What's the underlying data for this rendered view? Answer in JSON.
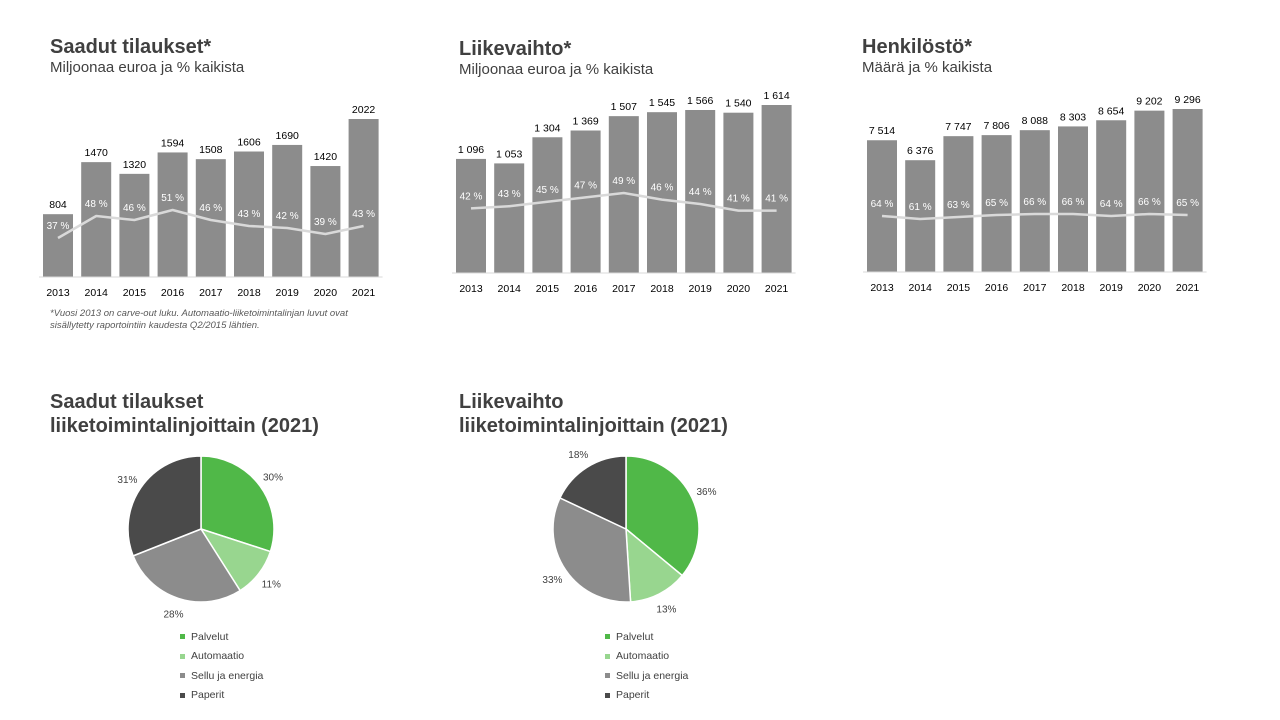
{
  "colors": {
    "bar": "#8c8c8c",
    "line": "#d9d9d9",
    "axis": "#d9d9d9",
    "pct": "#ffffff",
    "palvelut": "#50b848",
    "automaatio": "#98d68f",
    "sellu": "#8c8c8c",
    "paperit": "#4a4a4a"
  },
  "footnote": "*Vuosi 2013 on carve-out luku. Automaatio-liiketoimintalinjan luvut ovat sisällytetty raportointiin kaudesta Q2/2015 lähtien.",
  "chart_data": [
    {
      "type": "bar",
      "title": "Saadut tilaukset*",
      "subtitle": "Miljoonaa euroa ja % kaikista",
      "categories": [
        "2013",
        "2014",
        "2015",
        "2016",
        "2017",
        "2018",
        "2019",
        "2020",
        "2021"
      ],
      "values": [
        804,
        1470,
        1320,
        1594,
        1508,
        1606,
        1690,
        1420,
        2022
      ],
      "value_labels": [
        "804",
        "1470",
        "1320",
        "1594",
        "1508",
        "1606",
        "1690",
        "1420",
        "2022"
      ],
      "share": [
        37,
        48,
        46,
        51,
        46,
        43,
        42,
        39,
        43
      ],
      "share_labels": [
        "37 %",
        "48 %",
        "46 %",
        "51 %",
        "46 %",
        "43 %",
        "42 %",
        "39 %",
        "43 %"
      ]
    },
    {
      "type": "bar",
      "title": "Liikevaihto*",
      "subtitle": "Miljoonaa euroa ja % kaikista",
      "categories": [
        "2013",
        "2014",
        "2015",
        "2016",
        "2017",
        "2018",
        "2019",
        "2020",
        "2021"
      ],
      "values": [
        1096,
        1053,
        1304,
        1369,
        1507,
        1545,
        1566,
        1540,
        1614
      ],
      "value_labels": [
        "1 096",
        "1 053",
        "1 304",
        "1 369",
        "1 507",
        "1 545",
        "1 566",
        "1 540",
        "1 614"
      ],
      "share": [
        42,
        43,
        45,
        47,
        49,
        46,
        44,
        41,
        41
      ],
      "share_labels": [
        "42 %",
        "43 %",
        "45 %",
        "47 %",
        "49 %",
        "46 %",
        "44 %",
        "41 %",
        "41 %"
      ]
    },
    {
      "type": "bar",
      "title": "Henkilöstö*",
      "subtitle": "Määrä ja % kaikista",
      "categories": [
        "2013",
        "2014",
        "2015",
        "2016",
        "2017",
        "2018",
        "2019",
        "2020",
        "2021"
      ],
      "values": [
        7514,
        6376,
        7747,
        7806,
        8088,
        8303,
        8654,
        9202,
        9296
      ],
      "value_labels": [
        "7 514",
        "6 376",
        "7 747",
        "7 806",
        "8 088",
        "8 303",
        "8 654",
        "9 202",
        "9 296"
      ],
      "share": [
        64,
        61,
        63,
        65,
        66,
        66,
        64,
        66,
        65
      ],
      "share_labels": [
        "64 %",
        "61 %",
        "63 %",
        "65 %",
        "66 %",
        "66 %",
        "64 %",
        "66 %",
        "65 %"
      ]
    },
    {
      "type": "pie",
      "title_lines": [
        "Saadut tilaukset",
        "liiketoimintalinjoittain  (2021)"
      ],
      "labels": [
        "Palvelut",
        "Automaatio",
        "Sellu ja energia",
        "Paperit"
      ],
      "values": [
        30,
        11,
        28,
        31
      ],
      "value_labels": [
        "30%",
        "11%",
        "28%",
        "31%"
      ]
    },
    {
      "type": "pie",
      "title_lines": [
        "Liikevaihto",
        "liiketoimintalinjoittain  (2021)"
      ],
      "labels": [
        "Palvelut",
        "Automaatio",
        "Sellu ja energia",
        "Paperit"
      ],
      "values": [
        36,
        13,
        33,
        18
      ],
      "value_labels": [
        "36%",
        "13%",
        "33%",
        "18%"
      ]
    }
  ]
}
